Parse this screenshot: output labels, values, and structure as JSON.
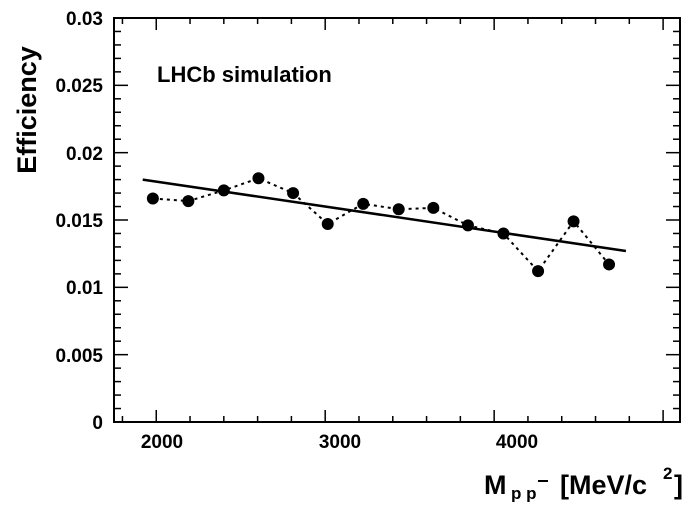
{
  "chart_data": {
    "type": "scatter",
    "title": "",
    "annotation": "LHCb simulation",
    "ylabel": "Efficiency",
    "xlabel": {
      "symbol": "M",
      "subscript": "p p",
      "unit_prefix": "[MeV/c",
      "unit_power": "2",
      "unit_suffix": "]"
    },
    "xlim": [
      1750,
      5100
    ],
    "ylim": [
      0,
      0.03
    ],
    "grid": false,
    "legend": "none",
    "x_tick_labels": [
      "2000",
      "3000",
      "4000"
    ],
    "y_tick_labels": [
      "0",
      "0.005",
      "0.01",
      "0.015",
      "0.02",
      "0.025",
      "0.03"
    ],
    "series": [
      {
        "style": "points-dotted",
        "color": "#000000",
        "x": [
          1980,
          2190,
          2400,
          2605,
          2810,
          3015,
          3225,
          3435,
          3640,
          3845,
          4055,
          4260,
          4470,
          4680
        ],
        "y": [
          0.0166,
          0.0164,
          0.0172,
          0.0181,
          0.017,
          0.0147,
          0.0162,
          0.0158,
          0.0159,
          0.0146,
          0.014,
          0.0112,
          0.0149,
          0.0117
        ]
      },
      {
        "style": "line",
        "color": "#000000",
        "x": [
          1920,
          4780
        ],
        "y": [
          0.018,
          0.0127
        ]
      }
    ]
  }
}
